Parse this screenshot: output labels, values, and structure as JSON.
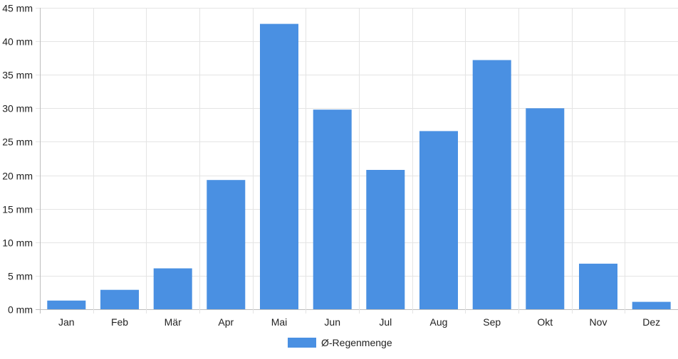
{
  "chart_data": {
    "type": "bar",
    "categories": [
      "Jan",
      "Feb",
      "Mär",
      "Apr",
      "Mai",
      "Jun",
      "Jul",
      "Aug",
      "Sep",
      "Okt",
      "Nov",
      "Dez"
    ],
    "series": [
      {
        "name": "Ø-Regenmenge",
        "values": [
          1.3,
          2.9,
          6.1,
          19.3,
          42.6,
          29.8,
          20.8,
          26.6,
          37.2,
          30.0,
          6.8,
          1.1
        ],
        "color": "#4a90e2"
      }
    ],
    "y_unit": "mm",
    "ylim": [
      0,
      45
    ],
    "y_ticks": [
      0,
      5,
      10,
      15,
      20,
      25,
      30,
      35,
      40,
      45
    ],
    "y_tick_labels": [
      "0 mm",
      "5 mm",
      "10 mm",
      "15 mm",
      "20 mm",
      "25 mm",
      "30 mm",
      "35 mm",
      "40 mm",
      "45 mm"
    ],
    "grid": true,
    "legend_position": "bottom",
    "xlabel": "",
    "ylabel": "",
    "title": ""
  }
}
